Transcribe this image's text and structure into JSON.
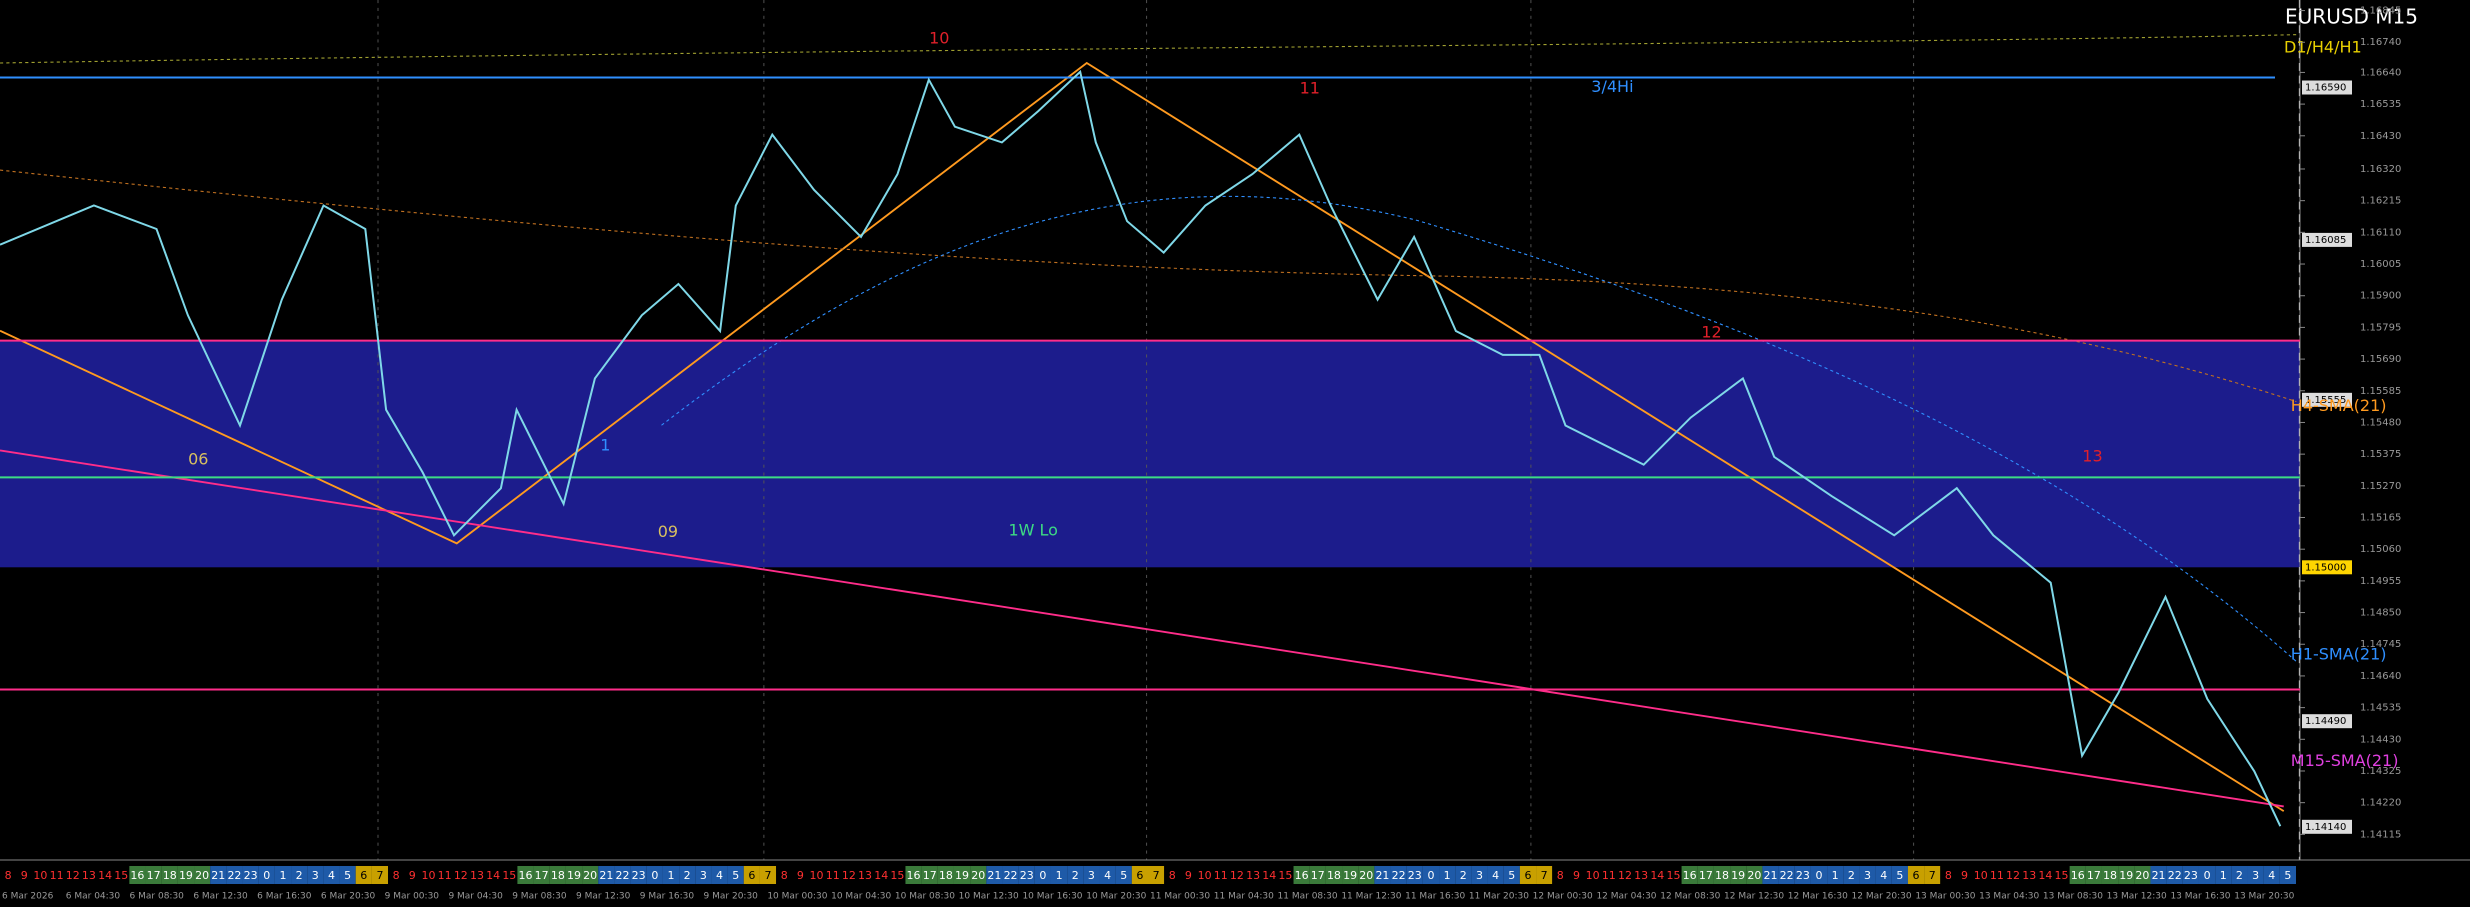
{
  "chart_data": {
    "type": "line",
    "title": "EURUSD M15",
    "subtitle": "D1/H4/H1",
    "xlim": [
      0,
      440
    ],
    "ylim": [
      1.1403,
      1.1688
    ],
    "price": {
      "color": "#7fd8e8",
      "x": [
        0,
        18,
        30,
        36,
        46,
        54,
        62,
        70,
        74,
        81,
        87,
        96,
        99,
        108,
        114,
        123,
        130,
        138,
        141,
        148,
        156,
        165,
        172,
        178,
        183,
        192,
        199,
        207,
        210,
        216,
        223,
        231,
        240,
        249,
        255,
        264,
        271,
        279,
        288,
        295,
        300,
        315,
        324,
        334,
        340,
        351,
        363,
        375,
        382,
        393,
        399,
        406,
        415,
        423,
        432,
        437
      ],
      "values": [
        1.16069,
        1.16199,
        1.16121,
        1.15835,
        1.1547,
        1.15887,
        1.16199,
        1.16121,
        1.15522,
        1.15314,
        1.15106,
        1.15262,
        1.15522,
        1.1521,
        1.15626,
        1.15835,
        1.15939,
        1.15783,
        1.16199,
        1.16434,
        1.16251,
        1.16095,
        1.16303,
        1.16616,
        1.1646,
        1.16408,
        1.16512,
        1.16642,
        1.16408,
        1.16147,
        1.16043,
        1.16199,
        1.16303,
        1.16434,
        1.16199,
        1.15887,
        1.16095,
        1.15783,
        1.15704,
        1.15704,
        1.1547,
        1.1534,
        1.15496,
        1.15626,
        1.15366,
        1.15236,
        1.15106,
        1.15262,
        1.15106,
        1.14949,
        1.14376,
        1.14585,
        1.14902,
        1.14564,
        1.14324,
        1.14142
      ]
    },
    "zone": {
      "color": "#1c1c8c",
      "top": 1.15751,
      "bottom": 1.15
    },
    "levels": [
      {
        "value": 1.1659,
        "label": "1.16590",
        "color": "#2f8fff"
      },
      {
        "value": 1.16085,
        "label": "1.16085",
        "color": "#3aa"
      },
      {
        "value": 1.15751,
        "color": "#ff2d8a"
      },
      {
        "value": 1.15555,
        "label": "1.15555",
        "color": "#888"
      },
      {
        "value": 1.15298,
        "color": "#3ddc84"
      },
      {
        "value": 1.15,
        "label": "1.15000",
        "color": "#ffd500"
      },
      {
        "value": 1.14595,
        "color": "#ff2d8a"
      },
      {
        "value": 1.1449,
        "label": "1.14490",
        "color": "#888"
      },
      {
        "value": 1.1414,
        "label": "1.14140",
        "color": "#888"
      }
    ],
    "annotations": [
      {
        "text": "10",
        "x": 180,
        "y": 1.16751,
        "color": "#e0202a"
      },
      {
        "text": "11",
        "x": 251,
        "y": 1.16585,
        "color": "#e0202a"
      },
      {
        "text": "12",
        "x": 328,
        "y": 1.15777,
        "color": "#e0202a"
      },
      {
        "text": "13",
        "x": 401,
        "y": 1.15366,
        "color": "#e0202a"
      },
      {
        "text": "06",
        "x": 38,
        "y": 1.15355,
        "color": "#d8c060"
      },
      {
        "text": "09",
        "x": 128,
        "y": 1.15116,
        "color": "#d8c060"
      },
      {
        "text": "1W Lo",
        "x": 198,
        "y": 1.15121,
        "color": "#3ddc84"
      },
      {
        "text": "3/4Hi",
        "x": 309,
        "y": 1.1659,
        "color": "#2f8fff"
      },
      {
        "text": "1",
        "x": 116,
        "y": 1.15402,
        "color": "#2f8fff"
      },
      {
        "text": "H4-SMA(21)",
        "x": 439,
        "y": 1.15533,
        "color": "#ff9a1f"
      },
      {
        "text": "H1-SMA(21)",
        "x": 439,
        "y": 1.1471,
        "color": "#2f8fff"
      },
      {
        "text": "M15-SMA(21)",
        "x": 439,
        "y": 1.14356,
        "color": "#e040e0"
      }
    ],
    "yticks": [
      {
        "value": 1.16845,
        "label": "1.16845"
      },
      {
        "value": 1.1674,
        "label": "1.16740"
      },
      {
        "value": 1.1664,
        "label": "1.16640"
      },
      {
        "value": 1.16535,
        "label": "1.16535"
      },
      {
        "value": 1.1643,
        "label": "1.16430"
      },
      {
        "value": 1.1632,
        "label": "1.16320"
      },
      {
        "value": 1.16215,
        "label": "1.16215"
      },
      {
        "value": 1.1611,
        "label": "1.16110"
      },
      {
        "value": 1.16005,
        "label": "1.16005"
      },
      {
        "value": 1.159,
        "label": "1.15900"
      },
      {
        "value": 1.15795,
        "label": "1.15795"
      },
      {
        "value": 1.1569,
        "label": "1.15690"
      },
      {
        "value": 1.15585,
        "label": "1.15585"
      },
      {
        "value": 1.1548,
        "label": "1.15480"
      },
      {
        "value": 1.15375,
        "label": "1.15375"
      },
      {
        "value": 1.1527,
        "label": "1.15270"
      },
      {
        "value": 1.15165,
        "label": "1.15165"
      },
      {
        "value": 1.1506,
        "label": "1.15060"
      },
      {
        "value": 1.14955,
        "label": "1.14955"
      },
      {
        "value": 1.1485,
        "label": "1.14850"
      },
      {
        "value": 1.14745,
        "label": "1.14745"
      },
      {
        "value": 1.1464,
        "label": "1.14640"
      },
      {
        "value": 1.14535,
        "label": "1.14535"
      },
      {
        "value": 1.1443,
        "label": "1.14430"
      },
      {
        "value": 1.14325,
        "label": "1.14325"
      },
      {
        "value": 1.1422,
        "label": "1.14220"
      },
      {
        "value": 1.14115,
        "label": "1.14115"
      }
    ],
    "time_labels": [
      "6 Mar 2026",
      "6 Mar 04:30",
      "6 Mar 08:30",
      "6 Mar 12:30",
      "6 Mar 16:30",
      "6 Mar 20:30",
      "9 Mar 00:30",
      "9 Mar 04:30",
      "9 Mar 08:30",
      "9 Mar 12:30",
      "9 Mar 16:30",
      "9 Mar 20:30",
      "10 Mar 00:30",
      "10 Mar 04:30",
      "10 Mar 08:30",
      "10 Mar 12:30",
      "10 Mar 16:30",
      "10 Mar 20:30",
      "11 Mar 00:30",
      "11 Mar 04:30",
      "11 Mar 08:30",
      "11 Mar 12:30",
      "11 Mar 16:30",
      "11 Mar 20:30",
      "12 Mar 00:30",
      "12 Mar 04:30",
      "12 Mar 08:30",
      "12 Mar 12:30",
      "12 Mar 16:30",
      "12 Mar 20:30",
      "13 Mar 00:30",
      "13 Mar 04:30",
      "13 Mar 08:30",
      "13 Mar 12:30",
      "13 Mar 16:30",
      "13 Mar 20:30"
    ],
    "hours": [
      8,
      9,
      10,
      11,
      12,
      13,
      14,
      15,
      16,
      17,
      18,
      19,
      20,
      21,
      22,
      23,
      0,
      1,
      2,
      3,
      4,
      5,
      6,
      7,
      8,
      9,
      10,
      11,
      12,
      13,
      14,
      15,
      16,
      17,
      18,
      19,
      20,
      21,
      22,
      23,
      0,
      1,
      2,
      3,
      4,
      5,
      6,
      7,
      8,
      9,
      10,
      11,
      12,
      13,
      14,
      15,
      16,
      17,
      18,
      19,
      20,
      21,
      22,
      23,
      0,
      1,
      2,
      3,
      4,
      5,
      6,
      7,
      8,
      9,
      10,
      11,
      12,
      13,
      14,
      15,
      16,
      17,
      18,
      19,
      20,
      21,
      22,
      23,
      0,
      1,
      2,
      3,
      4,
      5,
      6,
      7,
      8,
      9,
      10,
      11,
      12,
      13,
      14,
      15,
      16,
      17,
      18,
      19,
      20,
      21,
      22,
      23,
      0,
      1,
      2,
      3,
      4,
      5,
      6,
      7,
      8,
      9,
      10,
      11,
      12,
      13,
      14,
      15,
      16,
      17,
      18,
      19,
      20,
      21,
      22,
      23,
      0,
      1,
      2,
      3,
      4,
      5
    ]
  }
}
